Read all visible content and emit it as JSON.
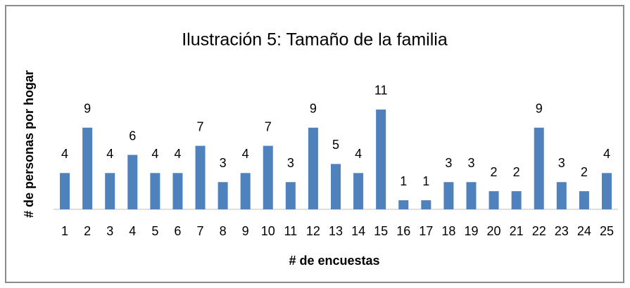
{
  "chart_data": {
    "type": "bar",
    "title": "Ilustración 5: Tamaño de la familia",
    "x_label": "# de encuestas",
    "y_label": "# de personas por hogar",
    "categories": [
      "1",
      "2",
      "3",
      "4",
      "5",
      "6",
      "7",
      "8",
      "9",
      "10",
      "11",
      "12",
      "13",
      "14",
      "15",
      "16",
      "17",
      "18",
      "19",
      "20",
      "21",
      "22",
      "23",
      "24",
      "25"
    ],
    "values": [
      4,
      9,
      4,
      6,
      4,
      4,
      7,
      3,
      4,
      7,
      3,
      9,
      5,
      4,
      11,
      1,
      1,
      3,
      3,
      2,
      2,
      9,
      3,
      2,
      4
    ],
    "color": "#4f81bd",
    "ylim": [
      0,
      12
    ],
    "grid": false
  }
}
